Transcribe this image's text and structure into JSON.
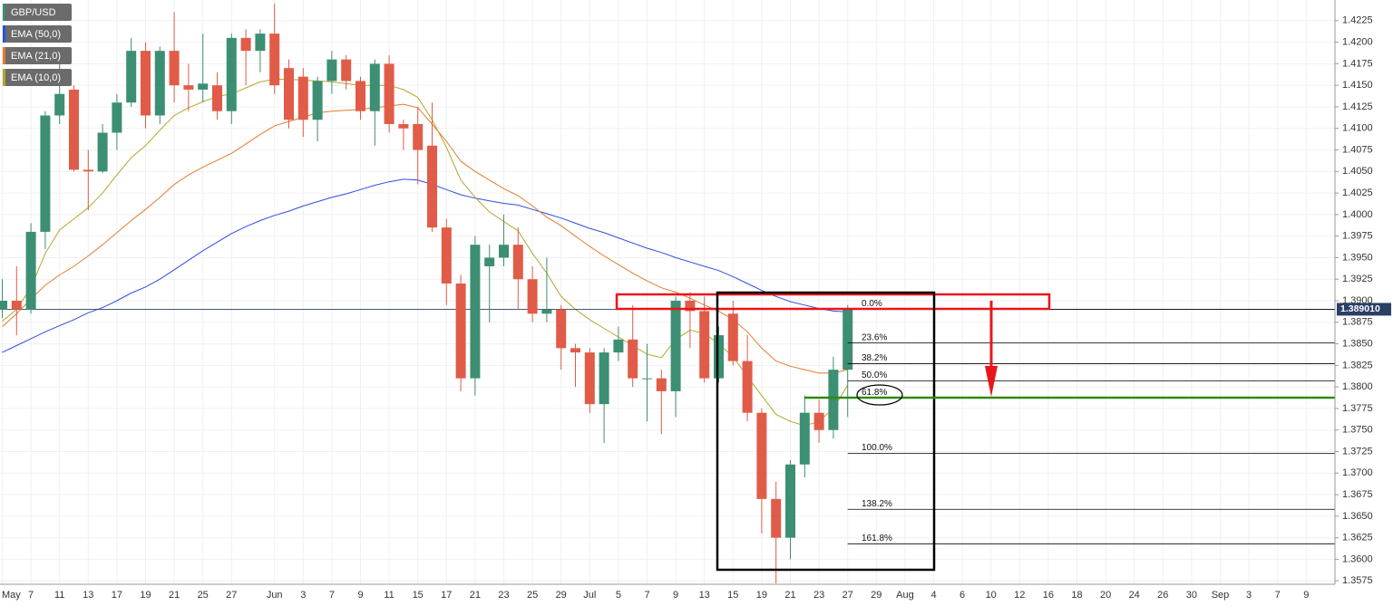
{
  "chart_data": {
    "type": "candlestick",
    "name": "GBP/USD",
    "up_color": "#3c8f73",
    "down_color": "#e05c48",
    "categories": [
      "May",
      null,
      "7",
      null,
      "11",
      null,
      "13",
      null,
      "17",
      null,
      "19",
      null,
      "21",
      null,
      "25",
      null,
      "27",
      null,
      null,
      "Jun",
      null,
      "3",
      null,
      "7",
      null,
      "9",
      null,
      "11",
      null,
      "15",
      null,
      "17",
      null,
      "21",
      null,
      "23",
      null,
      "25",
      null,
      "29",
      null,
      "Jul",
      null,
      "5",
      null,
      "7",
      null,
      "9",
      null,
      "13",
      null,
      "15",
      null,
      "19",
      null,
      "21",
      null,
      "23",
      null,
      "27",
      null,
      "29",
      null,
      "Aug",
      null,
      "4",
      null,
      "6",
      null,
      "10",
      null,
      "12",
      null,
      "16",
      null,
      "18",
      null,
      "20",
      null,
      "24",
      null,
      "26",
      null,
      "30",
      null,
      "Sep",
      null,
      "3",
      null,
      "7",
      null,
      "9",
      null
    ],
    "open": [
      1.389,
      1.39,
      1.389,
      1.398,
      1.4115,
      1.4145,
      1.4052,
      1.405,
      1.4095,
      1.413,
      1.419,
      1.4115,
      1.419,
      1.415,
      1.4145,
      1.415,
      1.412,
      1.4205,
      1.419,
      1.421,
      1.417,
      1.416,
      1.411,
      1.4155,
      1.418,
      1.4155,
      1.412,
      1.4175,
      1.4105,
      1.4105,
      1.408,
      1.3985,
      1.392,
      1.381,
      1.394,
      1.395,
      1.3965,
      1.3925,
      1.3885,
      1.389,
      1.3845,
      1.384,
      1.378,
      1.384,
      1.3855,
      1.381,
      1.381,
      1.3795,
      1.39,
      1.3888,
      1.381,
      1.3885,
      1.383,
      1.377,
      1.367,
      1.3625,
      1.371,
      1.377,
      1.375,
      1.382,
      null,
      null,
      null,
      null,
      null,
      null,
      null,
      null,
      null,
      null,
      null,
      null,
      null,
      null,
      null,
      null,
      null,
      null,
      null,
      null,
      null,
      null,
      null,
      null,
      null,
      null,
      null,
      null,
      null,
      null,
      null,
      null,
      null
    ],
    "high": [
      1.3925,
      1.394,
      1.399,
      1.412,
      1.4175,
      1.415,
      1.4075,
      1.4105,
      1.414,
      1.4205,
      1.42,
      1.4195,
      1.4235,
      1.4175,
      1.421,
      1.4165,
      1.421,
      1.4215,
      1.4215,
      1.4245,
      1.418,
      1.417,
      1.416,
      1.419,
      1.4185,
      1.416,
      1.418,
      1.4185,
      1.411,
      1.4125,
      1.413,
      1.3995,
      1.393,
      1.3975,
      1.3965,
      1.4,
      1.3985,
      1.394,
      1.395,
      1.3895,
      1.385,
      1.3845,
      1.3845,
      1.387,
      1.3895,
      1.385,
      1.382,
      1.3905,
      1.391,
      1.3905,
      1.387,
      1.39,
      1.386,
      1.3775,
      1.369,
      1.3715,
      1.379,
      1.3785,
      1.3835,
      1.3895,
      null,
      null,
      null,
      null,
      null,
      null,
      null,
      null,
      null,
      null,
      null,
      null,
      null,
      null,
      null,
      null,
      null,
      null,
      null,
      null,
      null,
      null,
      null,
      null,
      null,
      null,
      null,
      null,
      null,
      null,
      null,
      null,
      null
    ],
    "low": [
      1.388,
      1.386,
      1.3885,
      1.396,
      1.4105,
      1.405,
      1.4005,
      1.4048,
      1.4075,
      1.4125,
      1.41,
      1.4105,
      1.413,
      1.412,
      1.413,
      1.411,
      1.4105,
      1.415,
      1.4165,
      1.414,
      1.41,
      1.409,
      1.4085,
      1.414,
      1.4145,
      1.411,
      1.408,
      1.4095,
      1.4075,
      1.4035,
      1.398,
      1.3895,
      1.3795,
      1.379,
      1.3875,
      1.394,
      1.389,
      1.3875,
      1.3875,
      1.382,
      1.38,
      1.377,
      1.3735,
      1.383,
      1.38,
      1.376,
      1.3745,
      1.3765,
      1.3845,
      1.3805,
      1.3805,
      1.3825,
      1.376,
      1.363,
      1.3572,
      1.36,
      1.3695,
      1.3735,
      1.374,
      1.3765,
      null,
      null,
      null,
      null,
      null,
      null,
      null,
      null,
      null,
      null,
      null,
      null,
      null,
      null,
      null,
      null,
      null,
      null,
      null,
      null,
      null,
      null,
      null,
      null,
      null,
      null,
      null,
      null,
      null,
      null,
      null,
      null,
      null
    ],
    "close": [
      1.39,
      1.389,
      1.398,
      1.4115,
      1.414,
      1.4052,
      1.405,
      1.4095,
      1.413,
      1.419,
      1.4115,
      1.419,
      1.415,
      1.4145,
      1.4152,
      1.412,
      1.4205,
      1.419,
      1.421,
      1.415,
      1.411,
      1.411,
      1.4155,
      1.418,
      1.4155,
      1.412,
      1.4175,
      1.4105,
      1.41,
      1.4075,
      1.3985,
      1.392,
      1.381,
      1.3965,
      1.395,
      1.3965,
      1.3925,
      1.3885,
      1.389,
      1.3845,
      1.384,
      1.378,
      1.384,
      1.3855,
      1.381,
      1.381,
      1.3795,
      1.39,
      1.3888,
      1.381,
      1.386,
      1.383,
      1.377,
      1.367,
      1.3625,
      1.371,
      1.377,
      1.375,
      1.382,
      1.389,
      null,
      null,
      null,
      null,
      null,
      null,
      null,
      null,
      null,
      null,
      null,
      null,
      null,
      null,
      null,
      null,
      null,
      null,
      null,
      null,
      null,
      null,
      null,
      null,
      null,
      null,
      null,
      null,
      null,
      null,
      null,
      null,
      null
    ],
    "series": [
      {
        "name": "EMA (50,0)",
        "color": "#2d4ee0",
        "values": [
          1.384,
          1.3848,
          1.3856,
          1.3864,
          1.3871,
          1.3878,
          1.3886,
          1.3892,
          1.39,
          1.3909,
          1.3916,
          1.3925,
          1.3936,
          1.3947,
          1.3958,
          1.3968,
          1.3978,
          1.3986,
          1.3993,
          1.3999,
          1.4004,
          1.401,
          1.4015,
          1.402,
          1.4024,
          1.4029,
          1.4034,
          1.4038,
          1.4041,
          1.404,
          1.4035,
          1.4029,
          1.4023,
          1.4019,
          1.4016,
          1.4013,
          1.4011,
          1.4006,
          1.4001,
          1.3996,
          1.399,
          1.3984,
          1.3979,
          1.3973,
          1.3967,
          1.3961,
          1.3956,
          1.395,
          1.3945,
          1.394,
          1.3935,
          1.3928,
          1.392,
          1.3912,
          1.3905,
          1.3899,
          1.3895,
          1.3891,
          1.3888,
          1.3887,
          null,
          null,
          null,
          null,
          null,
          null,
          null,
          null,
          null,
          null,
          null,
          null,
          null,
          null,
          null,
          null,
          null,
          null,
          null,
          null,
          null,
          null,
          null,
          null,
          null,
          null,
          null,
          null,
          null,
          null,
          null,
          null,
          null
        ]
      },
      {
        "name": "EMA (21,0)",
        "color": "#e87a2c",
        "values": [
          1.387,
          1.3885,
          1.3902,
          1.3918,
          1.393,
          1.394,
          1.3952,
          1.3965,
          1.3979,
          1.3993,
          1.4006,
          1.402,
          1.4035,
          1.4046,
          1.4055,
          1.4063,
          1.4071,
          1.4082,
          1.4093,
          1.4103,
          1.4108,
          1.4113,
          1.4118,
          1.412,
          1.4121,
          1.4122,
          1.4124,
          1.4126,
          1.4128,
          1.4124,
          1.4105,
          1.4085,
          1.4062,
          1.405,
          1.404,
          1.403,
          1.4022,
          1.401,
          1.3997,
          1.3987,
          1.3975,
          1.3963,
          1.3952,
          1.3942,
          1.3932,
          1.3923,
          1.3915,
          1.391,
          1.3903,
          1.3895,
          1.3888,
          1.3878,
          1.3864,
          1.3845,
          1.383,
          1.3824,
          1.382,
          1.3816,
          1.3816,
          1.382,
          null,
          null,
          null,
          null,
          null,
          null,
          null,
          null,
          null,
          null,
          null,
          null,
          null,
          null,
          null,
          null,
          null,
          null,
          null,
          null,
          null,
          null,
          null,
          null,
          null,
          null,
          null,
          null,
          null,
          null,
          null,
          null,
          null
        ]
      },
      {
        "name": "EMA (10,0)",
        "color": "#b5a52a",
        "values": [
          1.3876,
          1.389,
          1.3915,
          1.3955,
          1.3982,
          1.3995,
          1.4008,
          1.4025,
          1.4046,
          1.4066,
          1.408,
          1.4098,
          1.4115,
          1.4124,
          1.4131,
          1.4137,
          1.414,
          1.4147,
          1.4154,
          1.4157,
          1.4157,
          1.4156,
          1.4155,
          1.4154,
          1.4152,
          1.415,
          1.415,
          1.415,
          1.4145,
          1.4136,
          1.411,
          1.4078,
          1.404,
          1.402,
          1.4003,
          1.3992,
          1.3981,
          1.3955,
          1.3932,
          1.3905,
          1.389,
          1.3878,
          1.3868,
          1.3858,
          1.3848,
          1.3838,
          1.3834,
          1.3855,
          1.3866,
          1.3862,
          1.385,
          1.3835,
          1.3812,
          1.379,
          1.3768,
          1.376,
          1.3755,
          1.376,
          1.3775,
          1.3802,
          null,
          null,
          null,
          null,
          null,
          null,
          null,
          null,
          null,
          null,
          null,
          null,
          null,
          null,
          null,
          null,
          null,
          null,
          null,
          null,
          null,
          null,
          null,
          null,
          null,
          null,
          null,
          null,
          null,
          null,
          null,
          null,
          null
        ]
      }
    ],
    "ylim": [
      1.3571,
      1.4249
    ],
    "yticks": [
      1.3575,
      {
        "value": 1.36,
        "label": "1.3600"
      },
      1.3625,
      {
        "value": 1.365,
        "label": "1.3650"
      },
      1.3675,
      {
        "value": 1.37,
        "label": "1.3700"
      },
      1.3725,
      {
        "value": 1.375,
        "label": "1.3750"
      },
      1.3775,
      {
        "value": 1.38,
        "label": "1.3800"
      },
      1.3825,
      {
        "value": 1.385,
        "label": "1.3850"
      },
      1.3875,
      {
        "value": 1.39,
        "label": "1.3900"
      },
      1.3925,
      {
        "value": 1.395,
        "label": "1.3950"
      },
      1.3975,
      {
        "value": 1.4,
        "label": "1.4000"
      },
      1.4025,
      {
        "value": 1.405,
        "label": "1.4050"
      },
      1.4075,
      {
        "value": 1.41,
        "label": "1.4100"
      },
      1.4125,
      {
        "value": 1.415,
        "label": "1.4150"
      },
      1.4175,
      {
        "value": 1.42,
        "label": "1.4200"
      },
      1.4225
    ],
    "grid": true,
    "last_price": {
      "value": 1.38901,
      "label": "1.389010"
    },
    "fib_levels": [
      {
        "level": "0.0%",
        "price": 1.389
      },
      {
        "level": "23.6%",
        "price": 1.3851
      },
      {
        "level": "38.2%",
        "price": 1.3827
      },
      {
        "level": "50.0%",
        "price": 1.3807
      },
      {
        "level": "61.8%",
        "price": 1.3787
      },
      {
        "level": "100.0%",
        "price": 1.3723
      },
      {
        "level": "138.2%",
        "price": 1.3658
      },
      {
        "level": "161.8%",
        "price": 1.3618
      }
    ]
  }
}
